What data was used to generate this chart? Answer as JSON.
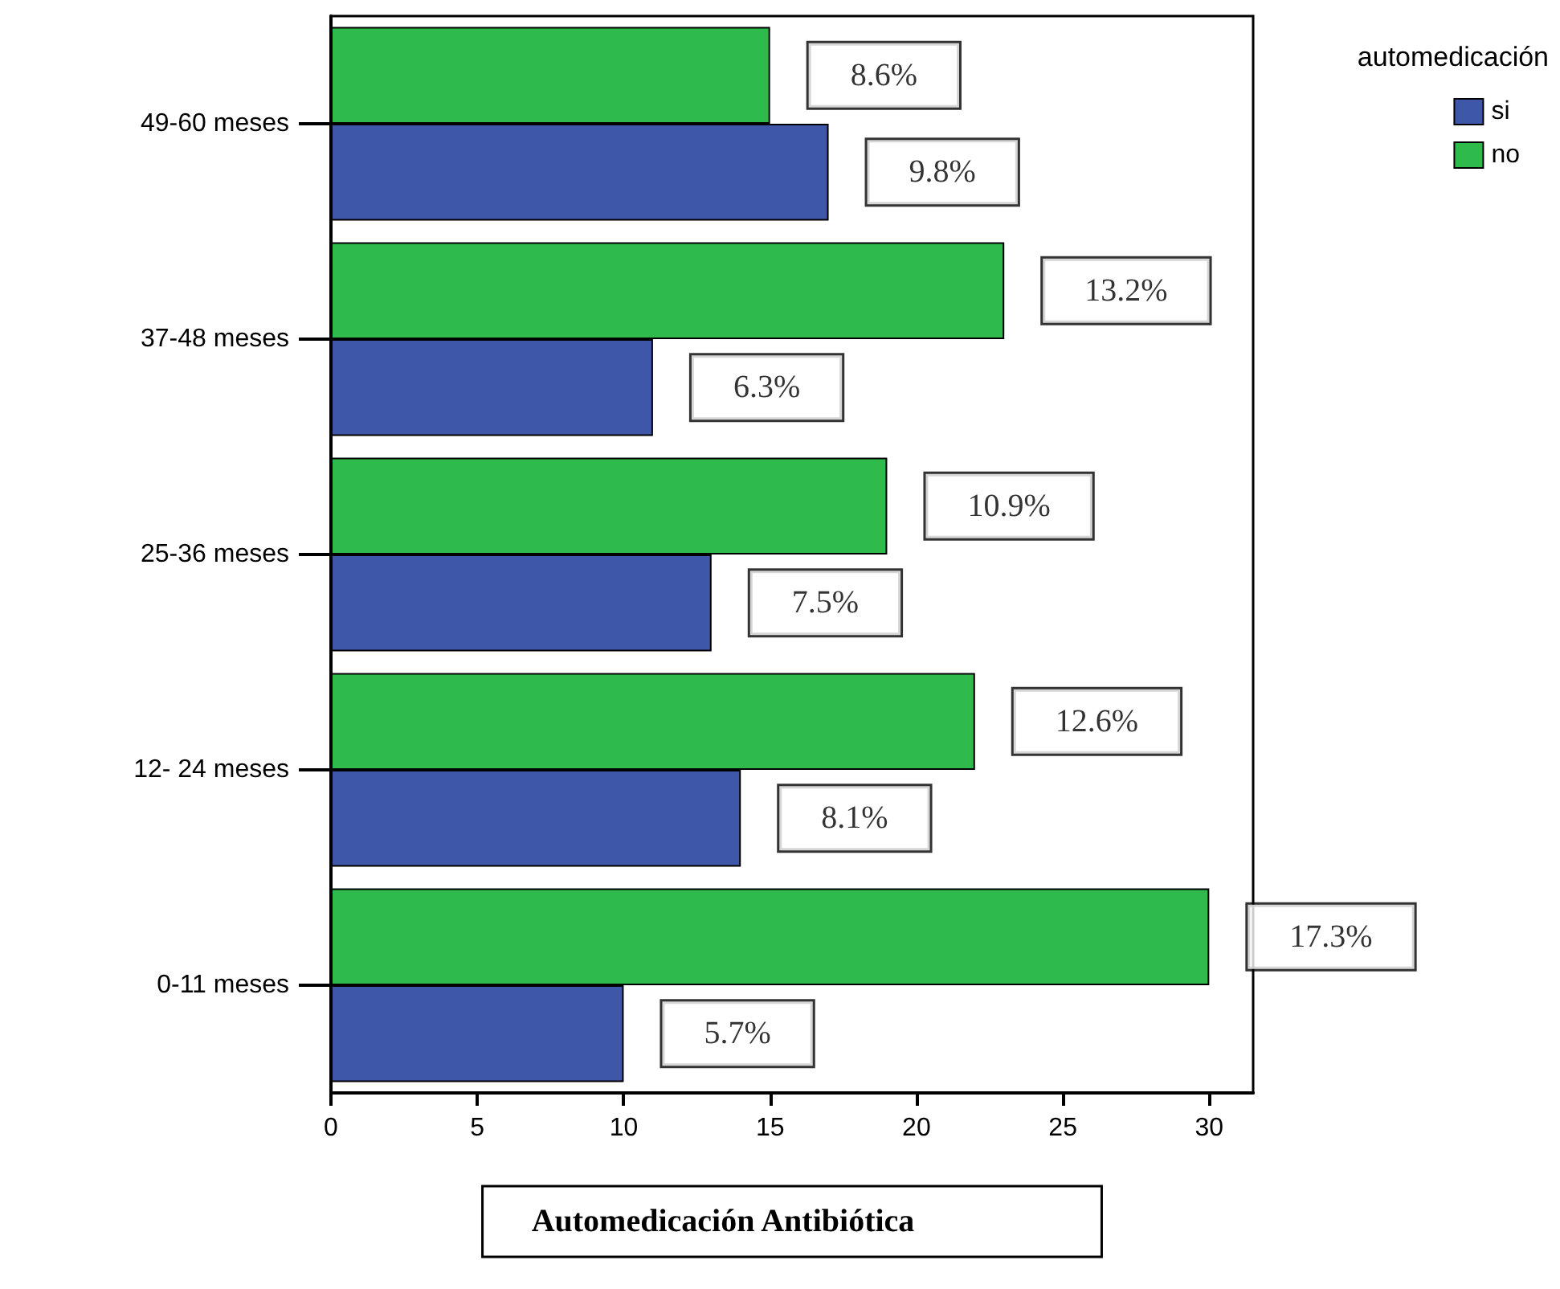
{
  "chart_data": {
    "type": "bar",
    "orientation": "horizontal",
    "xlabel": "Automedicación Antibiótica",
    "legend_title": "automedicación",
    "legend": "top right",
    "categories": [
      "49-60 meses",
      "37-48 meses",
      "25-36 meses",
      "12- 24 meses",
      "0-11 meses"
    ],
    "series": [
      {
        "name": "si",
        "color": "#3f57a9",
        "values": [
          17,
          11,
          13,
          14,
          10
        ]
      },
      {
        "name": "no",
        "color": "#2fbb4b",
        "values": [
          15,
          23,
          19,
          22,
          30
        ]
      }
    ],
    "annotations": [
      {
        "text": "9.8%",
        "x": 17,
        "y": "49-60 meses"
      },
      {
        "text": "6.3%",
        "x": 11,
        "y": "37-48 meses"
      },
      {
        "text": "7.5%",
        "x": 13,
        "y": "25-36 meses"
      },
      {
        "text": "8.1%",
        "x": 14,
        "y": "12- 24 meses"
      },
      {
        "text": "5.7%",
        "x": 10,
        "y": "0-11 meses"
      },
      {
        "text": "8.6%",
        "x": 15,
        "y": "49-60 meses"
      },
      {
        "text": "13.2%",
        "x": 23,
        "y": "37-48 meses"
      },
      {
        "text": "10.9%",
        "x": 19,
        "y": "25-36 meses"
      },
      {
        "text": "12.6%",
        "x": 22,
        "y": "12- 24 meses"
      },
      {
        "text": "17.3%",
        "x": 30,
        "y": "0-11 meses"
      }
    ],
    "xlim": [
      0,
      31.5
    ],
    "xticks": [
      0,
      5,
      10,
      15,
      20,
      25,
      30
    ],
    "grid": false
  }
}
